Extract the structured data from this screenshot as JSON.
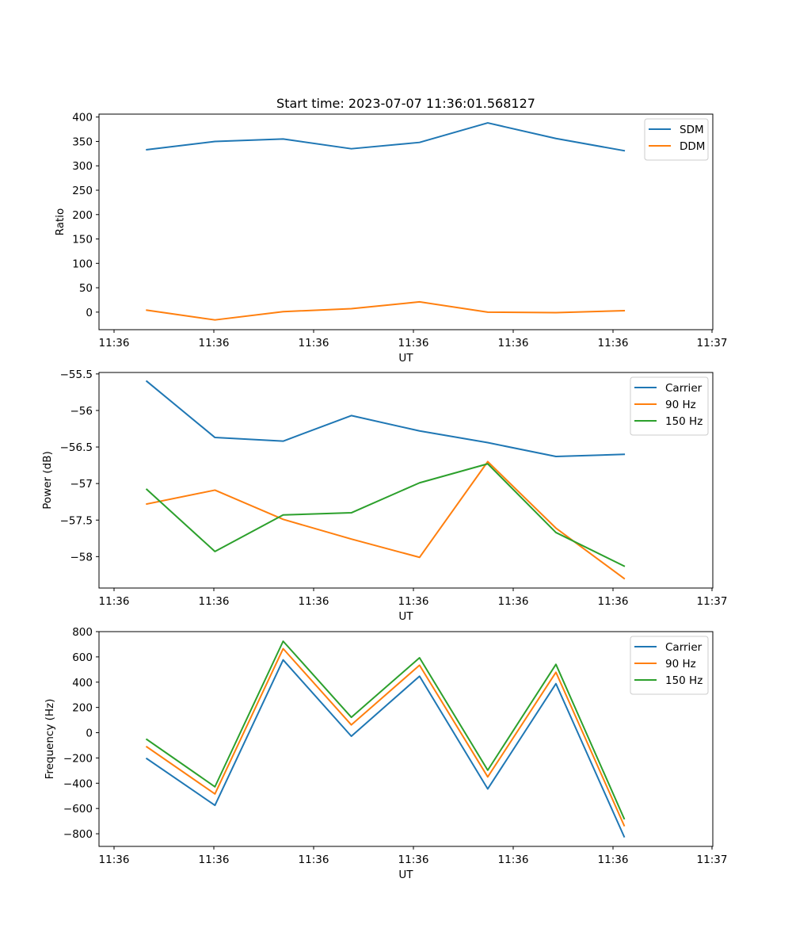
{
  "chart_data": [
    {
      "type": "line",
      "title": "Start time: 2023-07-07 11:36:01.568127",
      "xlabel": "UT",
      "ylabel": "Ratio",
      "x_ticks": [
        "11:36",
        "11:36",
        "11:36",
        "11:36",
        "11:36",
        "11:36",
        "11:37"
      ],
      "x": [
        0,
        1,
        2,
        3,
        4,
        5,
        6,
        7
      ],
      "xlim": [
        -0.7,
        8.3
      ],
      "ylim": [
        -36,
        406
      ],
      "y_ticks": [
        0,
        50,
        100,
        150,
        200,
        250,
        300,
        350,
        400
      ],
      "legend_position": "top-right",
      "series": [
        {
          "name": "SDM",
          "color": "#1f77b4",
          "values": [
            333,
            350,
            355,
            335,
            348,
            388,
            356,
            331
          ]
        },
        {
          "name": "DDM",
          "color": "#ff7f0e",
          "values": [
            4,
            -16,
            1,
            7,
            21,
            0,
            -1,
            3
          ]
        }
      ]
    },
    {
      "type": "line",
      "title": "",
      "xlabel": "UT",
      "ylabel": "Power (dB)",
      "x_ticks": [
        "11:36",
        "11:36",
        "11:36",
        "11:36",
        "11:36",
        "11:36",
        "11:37"
      ],
      "x": [
        0,
        1,
        2,
        3,
        4,
        5,
        6,
        7
      ],
      "xlim": [
        -0.7,
        8.3
      ],
      "ylim": [
        -58.43,
        -55.48
      ],
      "y_ticks": [
        -58.0,
        -57.5,
        -57.0,
        -56.5,
        -56.0,
        -55.5
      ],
      "legend_position": "top-right",
      "series": [
        {
          "name": "Carrier",
          "color": "#1f77b4",
          "values": [
            -55.6,
            -56.37,
            -56.42,
            -56.07,
            -56.28,
            -56.44,
            -56.63,
            -56.6
          ]
        },
        {
          "name": "90 Hz",
          "color": "#ff7f0e",
          "values": [
            -57.28,
            -57.09,
            -57.49,
            -57.76,
            -58.01,
            -56.7,
            -57.61,
            -58.3
          ]
        },
        {
          "name": "150 Hz",
          "color": "#2ca02c",
          "values": [
            -57.08,
            -57.93,
            -57.43,
            -57.4,
            -56.99,
            -56.73,
            -57.67,
            -58.13
          ]
        }
      ]
    },
    {
      "type": "line",
      "title": "",
      "xlabel": "UT",
      "ylabel": "Frequency (Hz)",
      "x_ticks": [
        "11:36",
        "11:36",
        "11:36",
        "11:36",
        "11:36",
        "11:36",
        "11:37"
      ],
      "x": [
        0,
        1,
        2,
        3,
        4,
        5,
        6,
        7
      ],
      "xlim": [
        -0.7,
        8.3
      ],
      "ylim": [
        -900,
        800
      ],
      "y_ticks": [
        -800,
        -600,
        -400,
        -200,
        0,
        200,
        400,
        600,
        800
      ],
      "legend_position": "top-right",
      "series": [
        {
          "name": "Carrier",
          "color": "#1f77b4",
          "values": [
            -205,
            -575,
            576,
            -28,
            447,
            -445,
            388,
            -823
          ]
        },
        {
          "name": "90 Hz",
          "color": "#ff7f0e",
          "values": [
            -112,
            -485,
            665,
            62,
            534,
            -350,
            478,
            -735
          ]
        },
        {
          "name": "150 Hz",
          "color": "#2ca02c",
          "values": [
            -53,
            -428,
            724,
            122,
            593,
            -297,
            541,
            -680
          ]
        }
      ]
    }
  ]
}
